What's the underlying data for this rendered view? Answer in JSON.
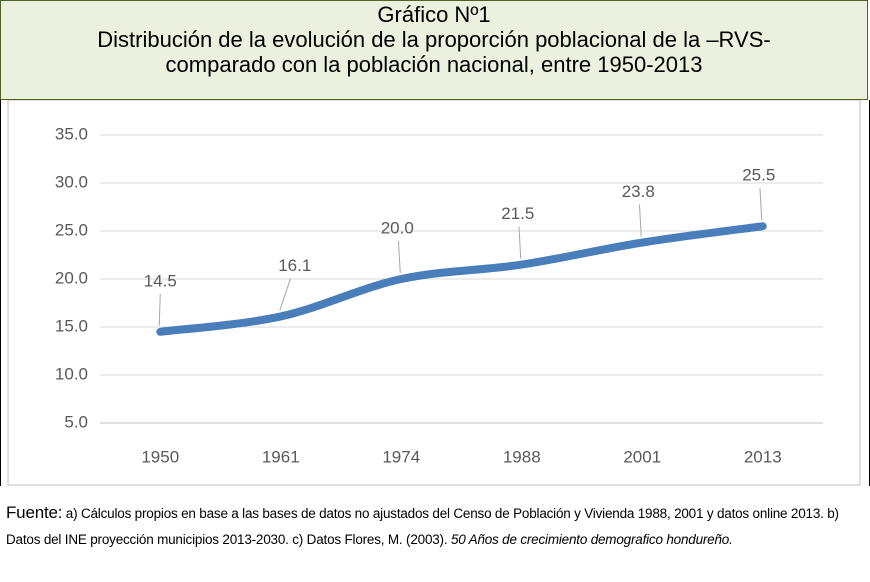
{
  "chart_data": {
    "type": "line",
    "title_lines": [
      "Gráfico Nº1",
      "Distribución de la evolución de la proporción poblacional de la –RVS-",
      "comparado con la población nacional, entre 1950-2013"
    ],
    "categories": [
      "1950",
      "1961",
      "1974",
      "1988",
      "2001",
      "2013"
    ],
    "series": [
      {
        "name": "RVS",
        "color": "#4a7ebb",
        "values": [
          14.5,
          16.1,
          20.0,
          21.5,
          23.8,
          25.5
        ],
        "value_labels": [
          "14.5",
          "16.1",
          "20.0",
          "21.5",
          "23.8",
          "25.5"
        ]
      }
    ],
    "ylim": [
      5,
      35
    ],
    "yticks": [
      {
        "value": 5,
        "label": "5.0"
      },
      {
        "value": 10,
        "label": "10.0"
      },
      {
        "value": 15,
        "label": "15.0"
      },
      {
        "value": 20,
        "label": "20.0"
      },
      {
        "value": 25,
        "label": "25.0"
      },
      {
        "value": 30,
        "label": "30.0"
      },
      {
        "value": 35,
        "label": "35.0"
      }
    ],
    "grid": true
  },
  "footer": {
    "label": "Fuente:",
    "text": " a) Cálculos propios en base a las bases de datos no ajustados del Censo de Población y Vivienda 1988, 2001 y  datos online 2013. b) Datos del INE proyección  municipios 2013-2030. c) Datos Flores, M. (2003). ",
    "italic": "50 Años de crecimiento demografico hondureño."
  }
}
